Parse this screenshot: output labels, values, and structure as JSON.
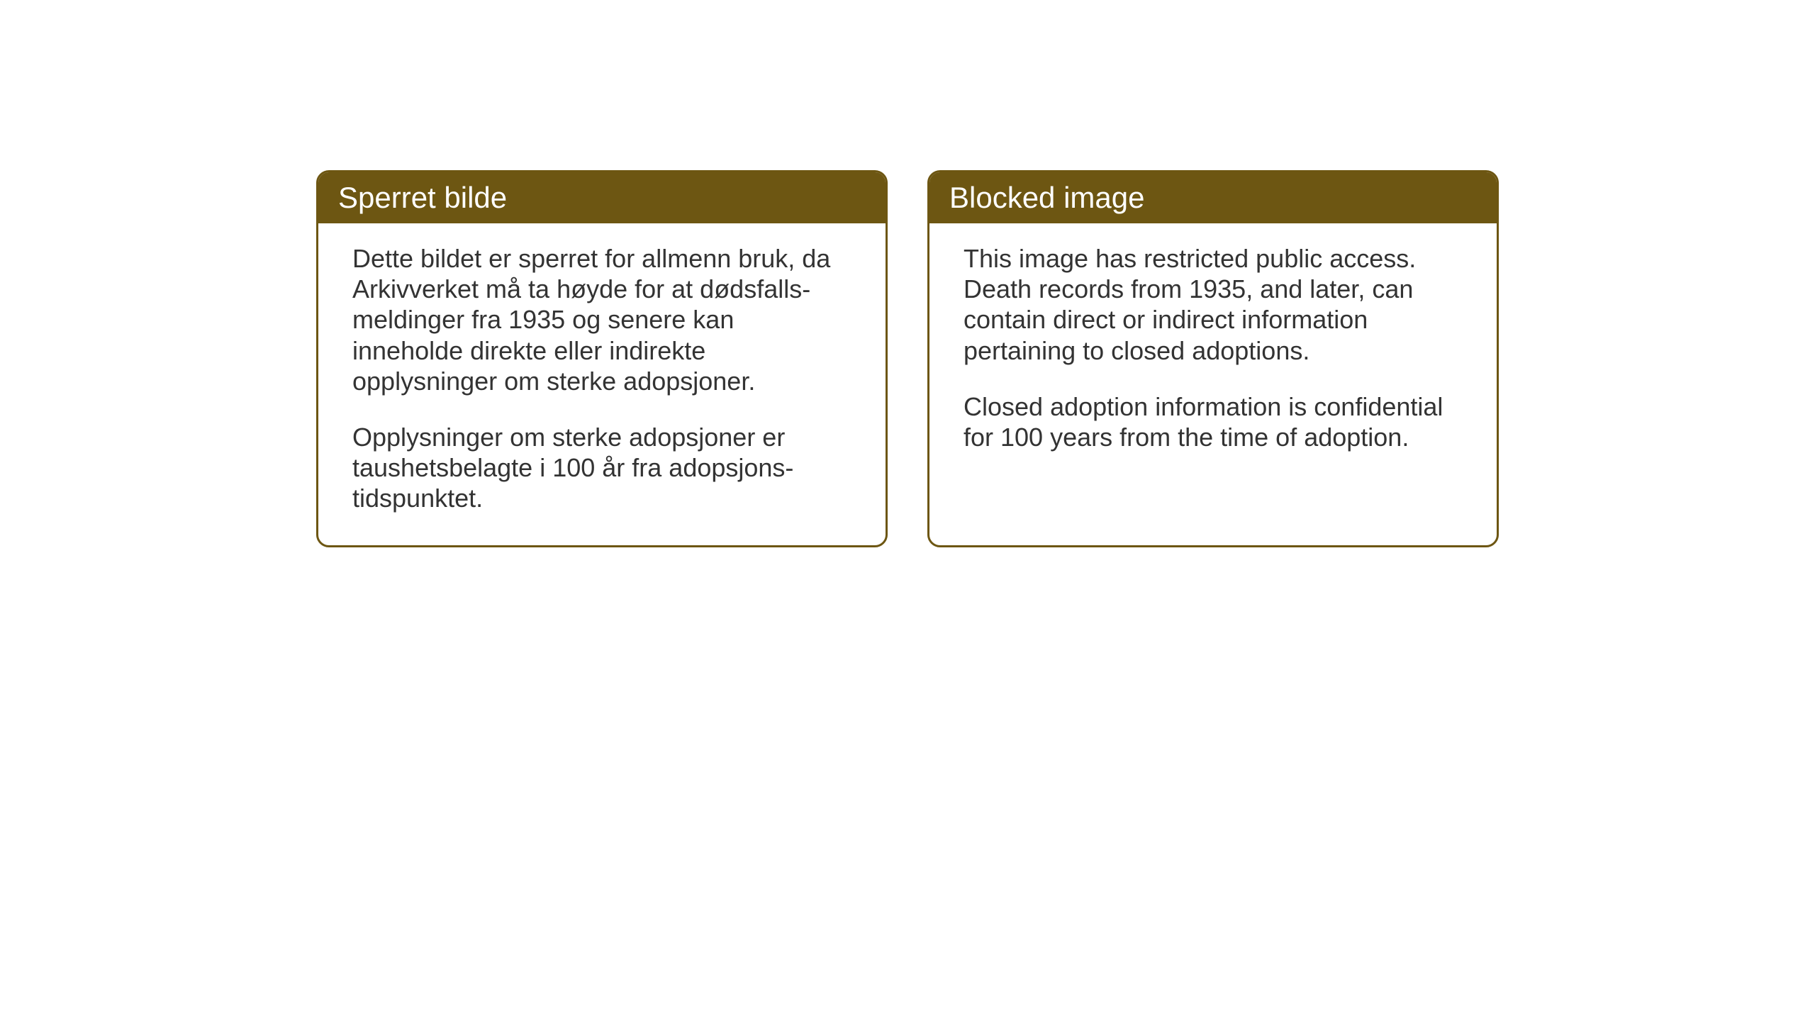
{
  "layout": {
    "background_color": "#ffffff",
    "card_border_color": "#6d5612",
    "card_header_bg": "#6d5612",
    "card_header_text_color": "#ffffff",
    "body_text_color": "#333333",
    "header_fontsize": 42,
    "body_fontsize": 36,
    "border_radius": 18,
    "border_width": 3
  },
  "cards": {
    "norwegian": {
      "title": "Sperret bilde",
      "paragraph1": "Dette bildet er sperret for allmenn bruk, da Arkivverket må ta høyde for at dødsfalls-meldinger fra 1935 og senere kan inneholde direkte eller indirekte opplysninger om sterke adopsjoner.",
      "paragraph2": "Opplysninger om sterke adopsjoner er taushetsbelagte i 100 år fra adopsjons-tidspunktet."
    },
    "english": {
      "title": "Blocked image",
      "paragraph1": "This image has restricted public access. Death records from 1935, and later, can contain direct or indirect information pertaining to closed adoptions.",
      "paragraph2": "Closed adoption information is confidential for 100 years from the time of adoption."
    }
  }
}
